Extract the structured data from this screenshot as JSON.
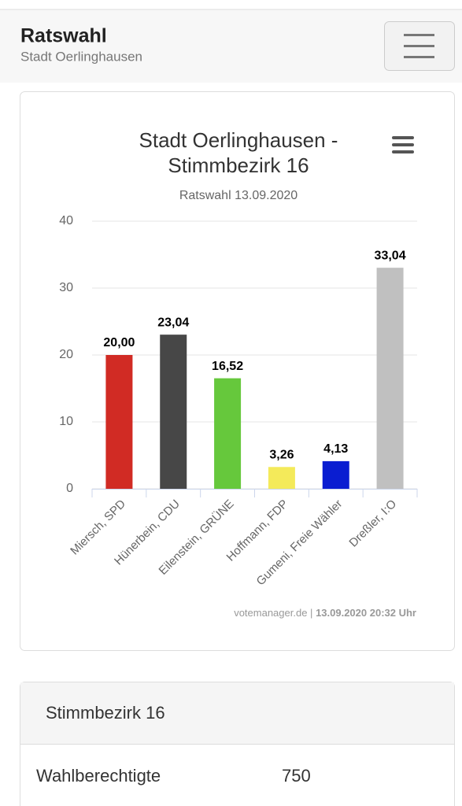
{
  "header": {
    "title": "Ratswahl",
    "subtitle": "Stadt Oerlinghausen"
  },
  "chart_data": {
    "type": "bar",
    "title": [
      "Stadt Oerlinghausen -",
      "Stimmbezirk 16"
    ],
    "subtitle": "Ratswahl 13.09.2020",
    "categories": [
      "Miersch, SPD",
      "Hünerbein, CDU",
      "Eilenstein, GRÜNE",
      "Hoffmann, FDP",
      "Gumeni, Freie Wähler",
      "Dreßler, I:O"
    ],
    "values": [
      20.0,
      23.04,
      16.52,
      3.26,
      4.13,
      33.04
    ],
    "value_labels": [
      "20,00",
      "23,04",
      "16,52",
      "3,26",
      "4,13",
      "33,04"
    ],
    "colors": [
      "#d12b24",
      "#474747",
      "#66c83c",
      "#f4ea5a",
      "#0a1dd1",
      "#c0c0c0"
    ],
    "ylim": [
      0,
      40
    ],
    "yticks": [
      0,
      10,
      20,
      30,
      40
    ],
    "grid": true
  },
  "credits": {
    "source": "votemanager.de",
    "separator": "|",
    "timestamp": "13.09.2020 20:32 Uhr"
  },
  "table": {
    "header": "Stimmbezirk 16",
    "rows": [
      [
        "Wahlberechtigte",
        "750"
      ]
    ]
  }
}
